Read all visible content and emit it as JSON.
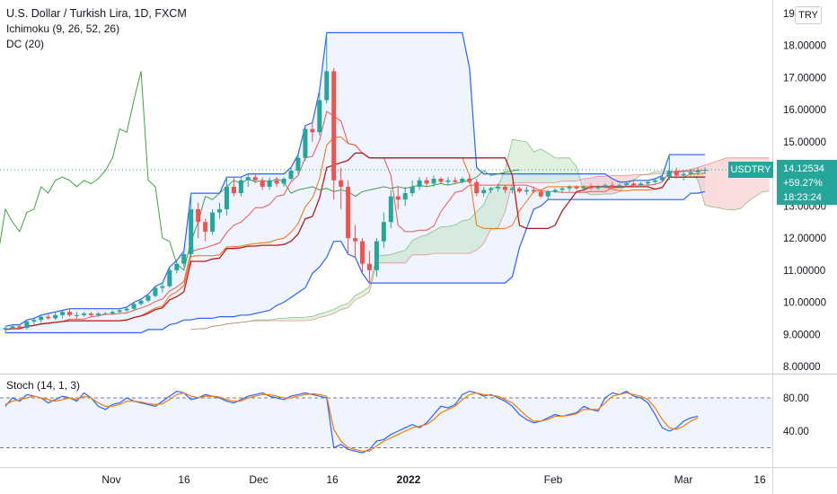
{
  "legend": {
    "title": "U.S. Dollar / Turkish Lira, 1D, FXCM",
    "ichimoku": "Ichimoku (9, 26, 52, 26)",
    "donchian": "DC (20)",
    "stoch": "Stoch (14, 1, 3)"
  },
  "currency_button": "TRY",
  "price_tag": {
    "symbol": "USDTRY",
    "price": "14.12534",
    "change": "+59.27%",
    "countdown": "18:23:24"
  },
  "colors": {
    "up": "#26a69a",
    "down": "#ef5350",
    "donchian": "#2962ff",
    "tenkan": "#ef5350",
    "kijun": "#e53935",
    "chikou": "#43a047",
    "cloud_green": "#a5d6a7",
    "cloud_red": "#ef9a9a",
    "stoch_k": "#2962ff",
    "stoch_d": "#f57c00"
  },
  "chart_data": [
    {
      "type": "candlestick",
      "title": "U.S. Dollar / Turkish Lira, 1D, FXCM",
      "price_axis": {
        "ticks": [
          "19.0000",
          "18.00000",
          "17.00000",
          "16.00000",
          "15.00000",
          "14.00000",
          "13.00000",
          "12.00000",
          "11.00000",
          "10.00000",
          "9.00000",
          "8.00000"
        ],
        "ylim": [
          8.0,
          19.0
        ]
      },
      "time_axis": {
        "ticks": [
          "Nov",
          "16",
          "Dec",
          "16",
          "2022",
          "Feb",
          "Mar",
          "16"
        ]
      },
      "last_price": 14.12534,
      "candles": [
        {
          "date": "Oct 18",
          "o": 9.15,
          "h": 9.25,
          "l": 9.05,
          "c": 9.2
        },
        {
          "date": "Oct 19",
          "o": 9.2,
          "h": 9.3,
          "l": 9.15,
          "c": 9.25
        },
        {
          "date": "Oct 20",
          "o": 9.25,
          "h": 9.3,
          "l": 9.15,
          "c": 9.2
        },
        {
          "date": "Oct 21",
          "o": 9.2,
          "h": 9.45,
          "l": 9.15,
          "c": 9.4
        },
        {
          "date": "Oct 22",
          "o": 9.4,
          "h": 9.5,
          "l": 9.3,
          "c": 9.45
        },
        {
          "date": "Oct 25",
          "o": 9.45,
          "h": 9.6,
          "l": 9.35,
          "c": 9.55
        },
        {
          "date": "Oct 26",
          "o": 9.55,
          "h": 9.65,
          "l": 9.45,
          "c": 9.5
        },
        {
          "date": "Oct 27",
          "o": 9.5,
          "h": 9.7,
          "l": 9.45,
          "c": 9.6
        },
        {
          "date": "Oct 28",
          "o": 9.6,
          "h": 9.75,
          "l": 9.5,
          "c": 9.7
        },
        {
          "date": "Oct 29",
          "o": 9.7,
          "h": 9.8,
          "l": 9.55,
          "c": 9.6
        },
        {
          "date": "Nov 1",
          "o": 9.6,
          "h": 9.7,
          "l": 9.5,
          "c": 9.6
        },
        {
          "date": "Nov 2",
          "o": 9.6,
          "h": 9.7,
          "l": 9.55,
          "c": 9.65
        },
        {
          "date": "Nov 3",
          "o": 9.65,
          "h": 9.7,
          "l": 9.55,
          "c": 9.6
        },
        {
          "date": "Nov 4",
          "o": 9.6,
          "h": 9.7,
          "l": 9.55,
          "c": 9.65
        },
        {
          "date": "Nov 5",
          "o": 9.65,
          "h": 9.7,
          "l": 9.6,
          "c": 9.65
        },
        {
          "date": "Nov 8",
          "o": 9.65,
          "h": 9.75,
          "l": 9.6,
          "c": 9.7
        },
        {
          "date": "Nov 9",
          "o": 9.7,
          "h": 9.8,
          "l": 9.65,
          "c": 9.75
        },
        {
          "date": "Nov 10",
          "o": 9.75,
          "h": 9.85,
          "l": 9.7,
          "c": 9.8
        },
        {
          "date": "Nov 11",
          "o": 9.8,
          "h": 10.0,
          "l": 9.75,
          "c": 9.95
        },
        {
          "date": "Nov 12",
          "o": 9.95,
          "h": 10.1,
          "l": 9.9,
          "c": 10.05
        },
        {
          "date": "Nov 15",
          "o": 10.05,
          "h": 10.25,
          "l": 10.0,
          "c": 10.2
        },
        {
          "date": "Nov 16",
          "o": 10.2,
          "h": 10.5,
          "l": 10.15,
          "c": 10.45
        },
        {
          "date": "Nov 17",
          "o": 10.45,
          "h": 10.6,
          "l": 10.3,
          "c": 10.5
        },
        {
          "date": "Nov 18",
          "o": 10.5,
          "h": 11.1,
          "l": 10.45,
          "c": 11.0
        },
        {
          "date": "Nov 19",
          "o": 11.0,
          "h": 11.3,
          "l": 10.9,
          "c": 11.2
        },
        {
          "date": "Nov 22",
          "o": 11.2,
          "h": 11.6,
          "l": 11.1,
          "c": 11.5
        },
        {
          "date": "Nov 23",
          "o": 11.5,
          "h": 13.4,
          "l": 11.4,
          "c": 12.9
        },
        {
          "date": "Nov 24",
          "o": 12.9,
          "h": 13.1,
          "l": 12.0,
          "c": 12.5
        },
        {
          "date": "Nov 25",
          "o": 12.5,
          "h": 12.6,
          "l": 11.9,
          "c": 12.2
        },
        {
          "date": "Nov 26",
          "o": 12.2,
          "h": 12.9,
          "l": 12.1,
          "c": 12.8
        },
        {
          "date": "Nov 29",
          "o": 12.8,
          "h": 13.1,
          "l": 12.6,
          "c": 12.9
        },
        {
          "date": "Nov 30",
          "o": 12.9,
          "h": 13.9,
          "l": 12.7,
          "c": 13.6
        },
        {
          "date": "Dec 1",
          "o": 13.6,
          "h": 13.9,
          "l": 13.3,
          "c": 13.4
        },
        {
          "date": "Dec 2",
          "o": 13.4,
          "h": 13.9,
          "l": 13.3,
          "c": 13.8
        },
        {
          "date": "Dec 3",
          "o": 13.8,
          "h": 14.0,
          "l": 13.6,
          "c": 13.9
        },
        {
          "date": "Dec 6",
          "o": 13.9,
          "h": 14.0,
          "l": 13.7,
          "c": 13.8
        },
        {
          "date": "Dec 7",
          "o": 13.8,
          "h": 13.9,
          "l": 13.5,
          "c": 13.6
        },
        {
          "date": "Dec 8",
          "o": 13.6,
          "h": 13.9,
          "l": 13.5,
          "c": 13.8
        },
        {
          "date": "Dec 9",
          "o": 13.8,
          "h": 13.9,
          "l": 13.6,
          "c": 13.7
        },
        {
          "date": "Dec 10",
          "o": 13.7,
          "h": 13.9,
          "l": 13.6,
          "c": 13.85
        },
        {
          "date": "Dec 13",
          "o": 13.85,
          "h": 14.2,
          "l": 13.8,
          "c": 14.1
        },
        {
          "date": "Dec 14",
          "o": 14.1,
          "h": 14.6,
          "l": 14.0,
          "c": 14.5
        },
        {
          "date": "Dec 15",
          "o": 14.5,
          "h": 15.5,
          "l": 14.4,
          "c": 15.4
        },
        {
          "date": "Dec 16",
          "o": 15.4,
          "h": 15.6,
          "l": 15.0,
          "c": 15.3
        },
        {
          "date": "Dec 17",
          "o": 15.3,
          "h": 16.6,
          "l": 15.2,
          "c": 16.3
        },
        {
          "date": "Dec 20",
          "o": 16.3,
          "h": 18.4,
          "l": 16.2,
          "c": 17.2
        },
        {
          "date": "Dec 21",
          "o": 17.2,
          "h": 17.3,
          "l": 13.2,
          "c": 13.8
        },
        {
          "date": "Dec 22",
          "o": 13.8,
          "h": 14.2,
          "l": 12.9,
          "c": 13.6
        },
        {
          "date": "Dec 23",
          "o": 13.6,
          "h": 13.8,
          "l": 11.5,
          "c": 12.0
        },
        {
          "date": "Dec 24",
          "o": 12.0,
          "h": 12.4,
          "l": 11.4,
          "c": 11.9
        },
        {
          "date": "Dec 27",
          "o": 11.9,
          "h": 12.0,
          "l": 10.9,
          "c": 11.2
        },
        {
          "date": "Dec 28",
          "o": 11.2,
          "h": 11.6,
          "l": 10.6,
          "c": 11.0
        },
        {
          "date": "Dec 29",
          "o": 11.0,
          "h": 12.0,
          "l": 10.8,
          "c": 11.9
        },
        {
          "date": "Dec 30",
          "o": 11.9,
          "h": 12.8,
          "l": 11.7,
          "c": 12.5
        },
        {
          "date": "Dec 31",
          "o": 12.5,
          "h": 13.5,
          "l": 12.3,
          "c": 13.3
        },
        {
          "date": "Jan 3",
          "o": 13.3,
          "h": 13.6,
          "l": 12.9,
          "c": 13.2
        },
        {
          "date": "Jan 4",
          "o": 13.2,
          "h": 13.6,
          "l": 13.0,
          "c": 13.4
        },
        {
          "date": "Jan 5",
          "o": 13.4,
          "h": 13.8,
          "l": 13.3,
          "c": 13.6
        },
        {
          "date": "Jan 6",
          "o": 13.6,
          "h": 13.9,
          "l": 13.5,
          "c": 13.8
        },
        {
          "date": "Jan 7",
          "o": 13.8,
          "h": 13.9,
          "l": 13.6,
          "c": 13.7
        },
        {
          "date": "Jan 10",
          "o": 13.7,
          "h": 13.95,
          "l": 13.6,
          "c": 13.85
        },
        {
          "date": "Jan 11",
          "o": 13.85,
          "h": 13.9,
          "l": 13.7,
          "c": 13.75
        },
        {
          "date": "Jan 12",
          "o": 13.75,
          "h": 13.9,
          "l": 13.65,
          "c": 13.8
        },
        {
          "date": "Jan 13",
          "o": 13.8,
          "h": 13.9,
          "l": 13.7,
          "c": 13.75
        },
        {
          "date": "Jan 14",
          "o": 13.75,
          "h": 13.9,
          "l": 13.7,
          "c": 13.85
        },
        {
          "date": "Jan 17",
          "o": 13.85,
          "h": 14.0,
          "l": 13.7,
          "c": 13.75
        },
        {
          "date": "Jan 18",
          "o": 13.75,
          "h": 13.85,
          "l": 13.3,
          "c": 13.4
        },
        {
          "date": "Jan 19",
          "o": 13.4,
          "h": 13.6,
          "l": 13.3,
          "c": 13.5
        },
        {
          "date": "Jan 20",
          "o": 13.5,
          "h": 13.6,
          "l": 13.4,
          "c": 13.55
        },
        {
          "date": "Jan 21",
          "o": 13.55,
          "h": 13.7,
          "l": 13.45,
          "c": 13.6
        },
        {
          "date": "Jan 24",
          "o": 13.6,
          "h": 13.65,
          "l": 13.4,
          "c": 13.5
        },
        {
          "date": "Jan 25",
          "o": 13.5,
          "h": 13.6,
          "l": 13.4,
          "c": 13.55
        },
        {
          "date": "Jan 26",
          "o": 13.55,
          "h": 13.6,
          "l": 13.4,
          "c": 13.45
        },
        {
          "date": "Jan 27",
          "o": 13.45,
          "h": 13.6,
          "l": 13.35,
          "c": 13.5
        },
        {
          "date": "Jan 28",
          "o": 13.5,
          "h": 13.6,
          "l": 13.4,
          "c": 13.45
        },
        {
          "date": "Jan 31",
          "o": 13.45,
          "h": 13.5,
          "l": 13.25,
          "c": 13.3
        },
        {
          "date": "Feb 1",
          "o": 13.3,
          "h": 13.5,
          "l": 13.2,
          "c": 13.45
        },
        {
          "date": "Feb 2",
          "o": 13.45,
          "h": 13.55,
          "l": 13.4,
          "c": 13.5
        },
        {
          "date": "Feb 3",
          "o": 13.5,
          "h": 13.6,
          "l": 13.4,
          "c": 13.55
        },
        {
          "date": "Feb 4",
          "o": 13.55,
          "h": 13.65,
          "l": 13.45,
          "c": 13.6
        },
        {
          "date": "Feb 7",
          "o": 13.6,
          "h": 13.65,
          "l": 13.5,
          "c": 13.55
        },
        {
          "date": "Feb 8",
          "o": 13.55,
          "h": 13.65,
          "l": 13.5,
          "c": 13.6
        },
        {
          "date": "Feb 9",
          "o": 13.6,
          "h": 13.7,
          "l": 13.5,
          "c": 13.55
        },
        {
          "date": "Feb 10",
          "o": 13.55,
          "h": 13.65,
          "l": 13.5,
          "c": 13.6
        },
        {
          "date": "Feb 11",
          "o": 13.6,
          "h": 13.7,
          "l": 13.55,
          "c": 13.65
        },
        {
          "date": "Feb 14",
          "o": 13.65,
          "h": 13.75,
          "l": 13.55,
          "c": 13.6
        },
        {
          "date": "Feb 15",
          "o": 13.6,
          "h": 13.7,
          "l": 13.55,
          "c": 13.65
        },
        {
          "date": "Feb 16",
          "o": 13.65,
          "h": 13.75,
          "l": 13.6,
          "c": 13.7
        },
        {
          "date": "Feb 17",
          "o": 13.7,
          "h": 13.8,
          "l": 13.6,
          "c": 13.65
        },
        {
          "date": "Feb 18",
          "o": 13.65,
          "h": 13.75,
          "l": 13.6,
          "c": 13.7
        },
        {
          "date": "Feb 21",
          "o": 13.7,
          "h": 13.8,
          "l": 13.65,
          "c": 13.75
        },
        {
          "date": "Feb 22",
          "o": 13.75,
          "h": 13.85,
          "l": 13.7,
          "c": 13.8
        },
        {
          "date": "Feb 23",
          "o": 13.8,
          "h": 13.95,
          "l": 13.75,
          "c": 13.9
        },
        {
          "date": "Feb 24",
          "o": 13.9,
          "h": 14.6,
          "l": 13.8,
          "c": 14.1
        },
        {
          "date": "Feb 25",
          "o": 14.1,
          "h": 14.2,
          "l": 13.85,
          "c": 13.95
        },
        {
          "date": "Feb 28",
          "o": 13.95,
          "h": 14.1,
          "l": 13.8,
          "c": 14.0
        },
        {
          "date": "Mar 1",
          "o": 14.0,
          "h": 14.15,
          "l": 13.9,
          "c": 14.05
        },
        {
          "date": "Mar 2",
          "o": 14.05,
          "h": 14.2,
          "l": 13.95,
          "c": 14.1
        },
        {
          "date": "Mar 3",
          "o": 14.1,
          "h": 14.2,
          "l": 14.0,
          "c": 14.13
        }
      ]
    },
    {
      "type": "line",
      "title": "Stoch (14, 1, 3)",
      "y_ticks": [
        "80.00",
        "40.00"
      ],
      "levels": [
        80,
        20
      ],
      "ylim": [
        10,
        90
      ],
      "series": [
        {
          "name": "%K",
          "values": [
            70,
            80,
            76,
            84,
            82,
            80,
            74,
            78,
            82,
            80,
            76,
            86,
            80,
            70,
            66,
            72,
            74,
            80,
            76,
            74,
            72,
            70,
            76,
            82,
            88,
            86,
            78,
            80,
            84,
            82,
            80,
            76,
            74,
            78,
            82,
            84,
            86,
            82,
            80,
            78,
            82,
            84,
            86,
            84,
            82,
            80,
            20,
            24,
            18,
            16,
            14,
            18,
            28,
            30,
            36,
            40,
            44,
            48,
            44,
            50,
            60,
            70,
            68,
            72,
            84,
            88,
            86,
            82,
            84,
            80,
            76,
            70,
            60,
            54,
            50,
            52,
            56,
            60,
            58,
            60,
            62,
            70,
            66,
            64,
            80,
            86,
            84,
            88,
            82,
            80,
            74,
            60,
            44,
            40,
            44,
            52,
            56,
            58
          ]
        },
        {
          "name": "%D",
          "values": [
            72,
            76,
            78,
            80,
            82,
            80,
            78,
            76,
            78,
            80,
            78,
            82,
            80,
            74,
            70,
            70,
            72,
            76,
            76,
            75,
            73,
            72,
            73,
            78,
            84,
            86,
            82,
            80,
            82,
            82,
            81,
            78,
            76,
            76,
            80,
            82,
            84,
            84,
            82,
            80,
            80,
            82,
            84,
            85,
            84,
            82,
            42,
            28,
            20,
            18,
            16,
            16,
            22,
            28,
            32,
            36,
            40,
            44,
            46,
            48,
            54,
            62,
            66,
            70,
            78,
            84,
            86,
            84,
            83,
            82,
            78,
            74,
            66,
            58,
            52,
            52,
            54,
            58,
            58,
            59,
            61,
            66,
            66,
            66,
            74,
            82,
            84,
            86,
            84,
            82,
            78,
            68,
            54,
            44,
            42,
            46,
            52,
            56
          ]
        }
      ]
    }
  ]
}
